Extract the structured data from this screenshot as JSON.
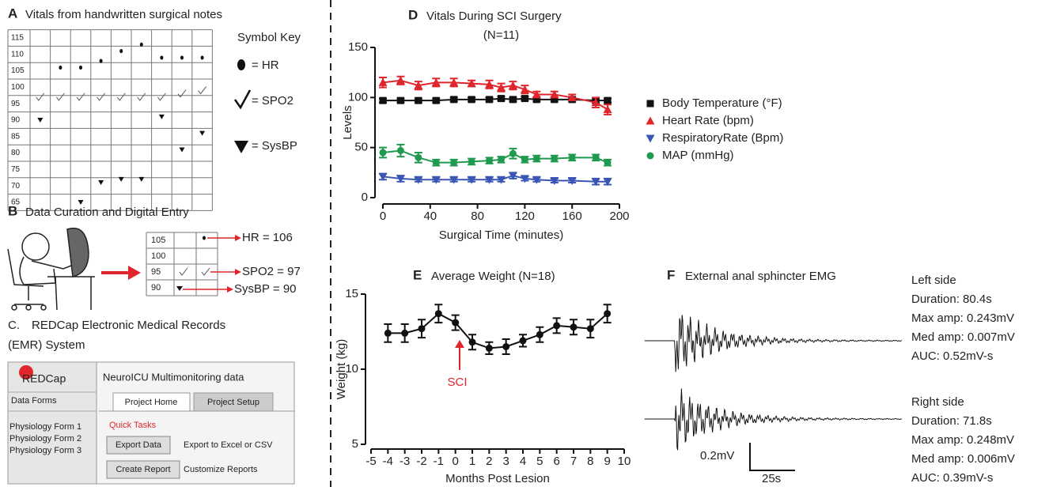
{
  "panel_a": {
    "label": "A",
    "title": "Vitals from handwritten surgical notes",
    "row_labels": [
      115,
      110,
      105,
      100,
      95,
      90,
      85,
      80,
      75,
      70,
      65
    ],
    "hr": [
      null,
      106,
      106,
      108,
      111,
      113,
      109,
      109,
      109
    ],
    "spo2": [
      97,
      97,
      97,
      97,
      97,
      97,
      97,
      98,
      99
    ],
    "sysbp": [
      90,
      null,
      65,
      71,
      72,
      72,
      91,
      81,
      86
    ],
    "key_title": "Symbol Key",
    "key": [
      "= HR",
      "= SPO2",
      "= SysBP"
    ]
  },
  "panel_b": {
    "label": "B",
    "title": "Data Curation and Digital Entry",
    "row_labels": [
      105,
      100,
      95,
      90
    ],
    "entries": [
      "HR = 106",
      "SPO2 = 97",
      "SysBP = 90"
    ]
  },
  "panel_c": {
    "label": "C.",
    "title": [
      "REDCap Electronic Medical Records",
      "(EMR) System"
    ],
    "logo": "REDCap",
    "project": "NeuroICU Multimonitoring data",
    "sidebar": [
      "Data Forms",
      "Physiology Form 1",
      "Physiology Form 2",
      "Physiology Form 3"
    ],
    "tabs": [
      "Project Home",
      "Project Setup"
    ],
    "quick_tasks": "Quick Tasks",
    "actions": [
      {
        "button": "Export Data",
        "text": "Export to Excel or CSV"
      },
      {
        "button": "Create Report",
        "text": "Customize Reports"
      }
    ]
  },
  "chart_data": [
    {
      "type": "line",
      "label": "D",
      "title": "Vitals During SCI Surgery",
      "subtitle": "(N=11)",
      "x_label": "Surgical Time (minutes)",
      "y_label": "Levels",
      "x": [
        0,
        15,
        30,
        45,
        60,
        75,
        90,
        100,
        110,
        120,
        130,
        145,
        160,
        180,
        190
      ],
      "xlim": [
        0,
        200
      ],
      "xticks": [
        0,
        40,
        80,
        120,
        160,
        200
      ],
      "ylim": [
        0,
        150
      ],
      "yticks": [
        0,
        50,
        100,
        150
      ],
      "legend": "right",
      "series": [
        {
          "name": "Body Temperature (°F)",
          "color": "#111111",
          "marker": "square",
          "values": [
            97,
            97,
            97,
            97,
            98,
            98,
            98,
            99,
            98,
            99,
            98,
            98,
            98,
            97,
            97
          ],
          "errors": [
            2,
            2,
            2,
            2,
            2,
            2,
            2,
            2,
            2,
            2,
            2,
            2,
            2,
            2,
            2
          ]
        },
        {
          "name": "Heart Rate (bpm)",
          "color": "#e0262c",
          "marker": "triangle",
          "values": [
            115,
            117,
            112,
            115,
            115,
            114,
            113,
            110,
            112,
            108,
            103,
            103,
            100,
            95,
            88
          ],
          "errors": [
            5,
            4,
            4,
            4,
            4,
            3,
            4,
            4,
            4,
            4,
            3,
            3,
            3,
            5,
            5
          ]
        },
        {
          "name": "RespiratoryRate (Bpm)",
          "color": "#3a56b4",
          "marker": "triangle-down",
          "values": [
            21,
            19,
            18,
            18,
            18,
            18,
            18,
            18,
            22,
            19,
            18,
            17,
            17,
            16,
            16
          ],
          "errors": [
            3,
            3,
            2,
            2,
            2,
            2,
            2,
            2,
            3,
            2,
            2,
            2,
            2,
            3,
            3
          ]
        },
        {
          "name": "MAP (mmHg)",
          "color": "#1f9a4f",
          "marker": "circle",
          "values": [
            45,
            47,
            40,
            35,
            35,
            36,
            37,
            38,
            44,
            38,
            39,
            39,
            40,
            40,
            35
          ],
          "errors": [
            5,
            6,
            5,
            3,
            3,
            3,
            3,
            3,
            5,
            3,
            3,
            3,
            3,
            3,
            3
          ]
        }
      ]
    },
    {
      "type": "line",
      "label": "E",
      "title": "Average Weight (N=18)",
      "x_label": "Months Post Lesion",
      "y_label": "Weight (kg)",
      "annotation": "SCI",
      "x": [
        -4,
        -3,
        -2,
        -1,
        0,
        1,
        2,
        3,
        4,
        5,
        6,
        7,
        8,
        9
      ],
      "xlim": [
        -5,
        10
      ],
      "xticks": [
        -5,
        -4,
        -3,
        -2,
        -1,
        0,
        1,
        2,
        3,
        4,
        5,
        6,
        7,
        8,
        9,
        10
      ],
      "ylim": [
        5,
        15
      ],
      "yticks": [
        5,
        10,
        15
      ],
      "series": [
        {
          "color": "#111111",
          "marker": "circle",
          "values": [
            12.4,
            12.4,
            12.7,
            13.7,
            13.1,
            11.8,
            11.4,
            11.5,
            11.9,
            12.3,
            12.9,
            12.8,
            12.7,
            13.7
          ],
          "errors": [
            0.6,
            0.6,
            0.6,
            0.6,
            0.5,
            0.5,
            0.4,
            0.5,
            0.4,
            0.5,
            0.5,
            0.5,
            0.6,
            0.6
          ]
        }
      ]
    }
  ],
  "panel_f": {
    "label": "F",
    "title": "External anal sphincter EMG",
    "left": [
      "Left side",
      "Duration: 80.4s",
      "Max amp: 0.243mV",
      "Med amp: 0.007mV",
      "AUC: 0.52mV-s"
    ],
    "right": [
      "Right side",
      "Duration: 71.8s",
      "Max amp: 0.248mV",
      "Med amp: 0.006mV",
      "AUC: 0.39mV-s"
    ],
    "scale_amp": "0.2mV",
    "scale_time": "25s"
  }
}
